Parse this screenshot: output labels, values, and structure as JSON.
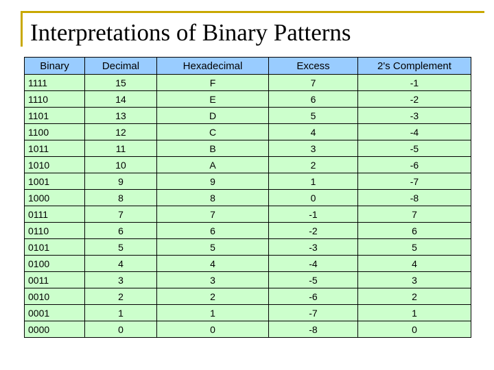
{
  "title": "Interpretations of Binary Patterns",
  "table": {
    "headers": [
      "Binary",
      "Decimal",
      "Hexadecimal",
      "Excess",
      "2's Complement"
    ],
    "rows": [
      [
        "1111",
        "15",
        "F",
        "7",
        "-1"
      ],
      [
        "1110",
        "14",
        "E",
        "6",
        "-2"
      ],
      [
        "1101",
        "13",
        "D",
        "5",
        "-3"
      ],
      [
        "1100",
        "12",
        "C",
        "4",
        "-4"
      ],
      [
        "1011",
        "11",
        "B",
        "3",
        "-5"
      ],
      [
        "1010",
        "10",
        "A",
        "2",
        "-6"
      ],
      [
        "1001",
        "9",
        "9",
        "1",
        "-7"
      ],
      [
        "1000",
        "8",
        "8",
        "0",
        "-8"
      ],
      [
        "0111",
        "7",
        "7",
        "-1",
        "7"
      ],
      [
        "0110",
        "6",
        "6",
        "-2",
        "6"
      ],
      [
        "0101",
        "5",
        "5",
        "-3",
        "5"
      ],
      [
        "0100",
        "4",
        "4",
        "-4",
        "4"
      ],
      [
        "0011",
        "3",
        "3",
        "-5",
        "3"
      ],
      [
        "0010",
        "2",
        "2",
        "-6",
        "2"
      ],
      [
        "0001",
        "1",
        "1",
        "-7",
        "1"
      ],
      [
        "0000",
        "0",
        "0",
        "-8",
        "0"
      ]
    ]
  },
  "colors": {
    "header_bg": "#99ccff",
    "cell_bg": "#ccffcc",
    "title_rule": "#c8a800"
  }
}
